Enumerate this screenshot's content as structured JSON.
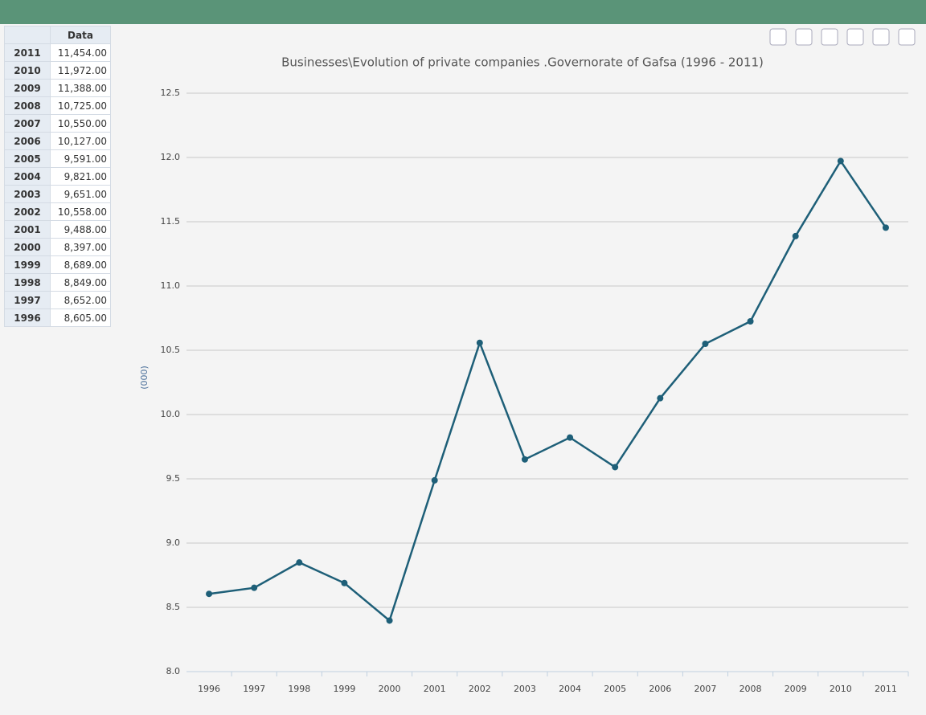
{
  "table": {
    "column_header": "Data",
    "rows": [
      [
        "2011",
        "11,454.00"
      ],
      [
        "2010",
        "11,972.00"
      ],
      [
        "2009",
        "11,388.00"
      ],
      [
        "2008",
        "10,725.00"
      ],
      [
        "2007",
        "10,550.00"
      ],
      [
        "2006",
        "10,127.00"
      ],
      [
        "2005",
        "9,591.00"
      ],
      [
        "2004",
        "9,821.00"
      ],
      [
        "2003",
        "9,651.00"
      ],
      [
        "2002",
        "10,558.00"
      ],
      [
        "2001",
        "9,488.00"
      ],
      [
        "2000",
        "8,397.00"
      ],
      [
        "1999",
        "8,689.00"
      ],
      [
        "1998",
        "8,849.00"
      ],
      [
        "1997",
        "8,652.00"
      ],
      [
        "1996",
        "8,605.00"
      ]
    ]
  },
  "chart_data": {
    "type": "line",
    "title": "Businesses\\Evolution of private companies .Governorate of Gafsa (1996 - 2011)",
    "y_label": "(000)",
    "categories": [
      "1996",
      "1997",
      "1998",
      "1999",
      "2000",
      "2001",
      "2002",
      "2003",
      "2004",
      "2005",
      "2006",
      "2007",
      "2008",
      "2009",
      "2010",
      "2011"
    ],
    "series": [
      {
        "name": "Data",
        "color": "#1e5f78",
        "values": [
          8.605,
          8.652,
          8.849,
          8.689,
          8.397,
          9.488,
          10.558,
          9.651,
          9.821,
          9.591,
          10.127,
          10.55,
          10.725,
          11.388,
          11.972,
          11.454
        ]
      }
    ],
    "ylim": [
      8,
      12.5
    ],
    "yticks": [
      {
        "value": 8,
        "label": "8.0"
      },
      8.5,
      {
        "value": 9,
        "label": "9.0"
      },
      9.5,
      {
        "value": 10,
        "label": "10.0"
      },
      10.5,
      {
        "value": 11,
        "label": "11.0"
      },
      11.5,
      {
        "value": 12,
        "label": "12.0"
      },
      12.5
    ],
    "grid": true
  }
}
